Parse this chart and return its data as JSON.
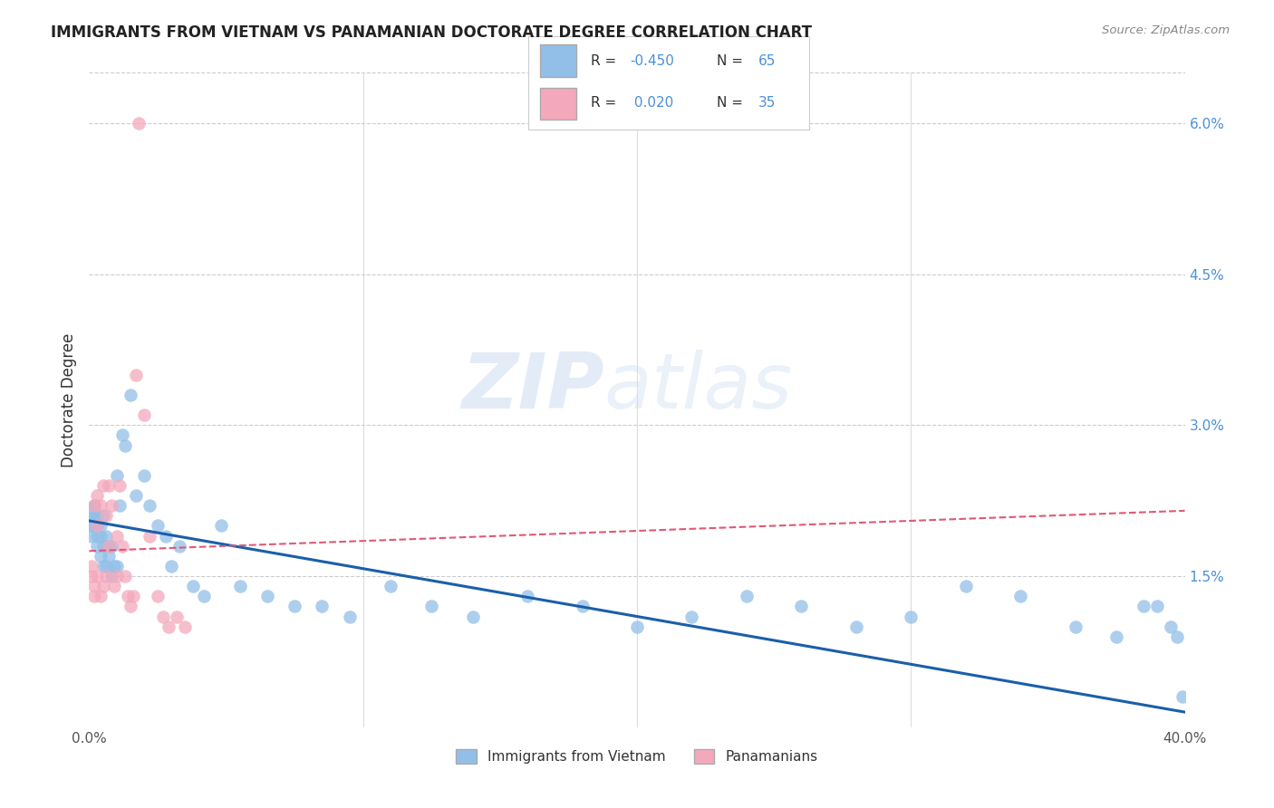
{
  "title": "IMMIGRANTS FROM VIETNAM VS PANAMANIAN DOCTORATE DEGREE CORRELATION CHART",
  "source": "Source: ZipAtlas.com",
  "ylabel": "Doctorate Degree",
  "right_yticks": [
    "6.0%",
    "4.5%",
    "3.0%",
    "1.5%"
  ],
  "right_ytick_vals": [
    0.06,
    0.045,
    0.03,
    0.015
  ],
  "legend_blue_label": "Immigrants from Vietnam",
  "legend_pink_label": "Panamanians",
  "watermark": "ZIPatlas",
  "blue_color": "#92bfe8",
  "pink_color": "#f4a8bb",
  "blue_line_color": "#1a5faa",
  "pink_line_color": "#e05878",
  "xmin": 0.0,
  "xmax": 0.4,
  "ymin": 0.0,
  "ymax": 0.065,
  "blue_scatter_x": [
    0.001,
    0.001,
    0.001,
    0.002,
    0.002,
    0.002,
    0.002,
    0.003,
    0.003,
    0.003,
    0.003,
    0.004,
    0.004,
    0.004,
    0.005,
    0.005,
    0.005,
    0.006,
    0.006,
    0.007,
    0.007,
    0.008,
    0.008,
    0.009,
    0.01,
    0.01,
    0.011,
    0.012,
    0.013,
    0.015,
    0.017,
    0.02,
    0.022,
    0.025,
    0.028,
    0.03,
    0.033,
    0.038,
    0.042,
    0.048,
    0.055,
    0.065,
    0.075,
    0.085,
    0.095,
    0.11,
    0.125,
    0.14,
    0.16,
    0.18,
    0.2,
    0.22,
    0.24,
    0.26,
    0.28,
    0.3,
    0.32,
    0.34,
    0.36,
    0.375,
    0.385,
    0.39,
    0.395,
    0.397,
    0.399
  ],
  "blue_scatter_y": [
    0.02,
    0.019,
    0.021,
    0.022,
    0.021,
    0.02,
    0.022,
    0.021,
    0.019,
    0.02,
    0.018,
    0.02,
    0.019,
    0.017,
    0.021,
    0.018,
    0.016,
    0.019,
    0.016,
    0.018,
    0.017,
    0.018,
    0.015,
    0.016,
    0.025,
    0.016,
    0.022,
    0.029,
    0.028,
    0.033,
    0.023,
    0.025,
    0.022,
    0.02,
    0.019,
    0.016,
    0.018,
    0.014,
    0.013,
    0.02,
    0.014,
    0.013,
    0.012,
    0.012,
    0.011,
    0.014,
    0.012,
    0.011,
    0.013,
    0.012,
    0.01,
    0.011,
    0.013,
    0.012,
    0.01,
    0.011,
    0.014,
    0.013,
    0.01,
    0.009,
    0.012,
    0.012,
    0.01,
    0.009,
    0.003
  ],
  "pink_scatter_x": [
    0.001,
    0.001,
    0.002,
    0.002,
    0.002,
    0.003,
    0.003,
    0.003,
    0.004,
    0.004,
    0.005,
    0.005,
    0.006,
    0.006,
    0.007,
    0.007,
    0.008,
    0.009,
    0.01,
    0.01,
    0.011,
    0.012,
    0.013,
    0.014,
    0.015,
    0.016,
    0.017,
    0.018,
    0.02,
    0.022,
    0.025,
    0.027,
    0.029,
    0.032,
    0.035
  ],
  "pink_scatter_y": [
    0.016,
    0.015,
    0.022,
    0.014,
    0.013,
    0.023,
    0.02,
    0.015,
    0.022,
    0.013,
    0.024,
    0.014,
    0.021,
    0.015,
    0.024,
    0.018,
    0.022,
    0.014,
    0.019,
    0.015,
    0.024,
    0.018,
    0.015,
    0.013,
    0.012,
    0.013,
    0.035,
    0.06,
    0.031,
    0.019,
    0.013,
    0.011,
    0.01,
    0.011,
    0.01
  ],
  "blue_trend_x": [
    0.0,
    0.4
  ],
  "blue_trend_y": [
    0.0205,
    0.0015
  ],
  "pink_trend_x": [
    0.0,
    0.4
  ],
  "pink_trend_y": [
    0.0175,
    0.0215
  ]
}
